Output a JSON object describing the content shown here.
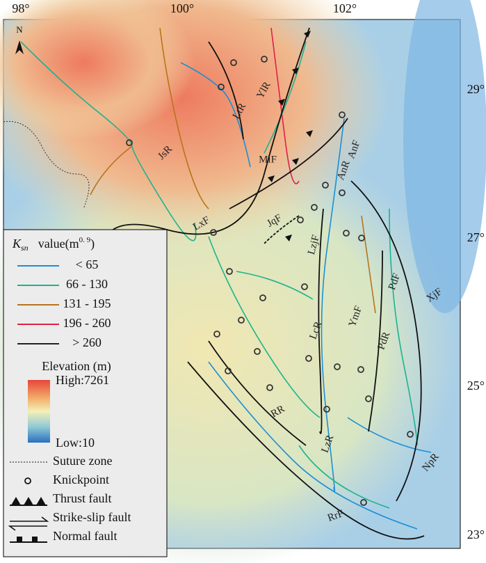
{
  "axes": {
    "top": [
      "98°",
      "100°",
      "102°"
    ],
    "right": [
      "29°",
      "27°",
      "25°",
      "23°"
    ]
  },
  "north": "N",
  "map_labels": [
    "YlR",
    "LtR",
    "JsR",
    "MlF",
    "AnF",
    "AnR",
    "LxF",
    "JqF",
    "LzjF",
    "XjF",
    "PdF",
    "YmF",
    "PdR",
    "LcR",
    "RR",
    "LzR",
    "NpR",
    "RrF"
  ],
  "legend": {
    "title_symbol": "K",
    "title_subscript": "sn",
    "title_text": "value(m",
    "title_superscript": "0. 9",
    "title_close": ")",
    "ksn_classes": [
      {
        "label": "< 65",
        "color": "#1b8fd6"
      },
      {
        "label": "66 - 130",
        "color": "#1bb38e"
      },
      {
        "label": "131 - 195",
        "color": "#b8741c"
      },
      {
        "label": "196 - 260",
        "color": "#e0204a"
      },
      {
        "label": "> 260",
        "color": "#222222"
      }
    ],
    "elevation": {
      "title": "Elevation (m)",
      "high": "High:7261",
      "low": "Low:10"
    },
    "symbols": [
      "Suture zone",
      "Knickpoint",
      "Thrust fault",
      "Strike-slip fault",
      "Normal fault"
    ]
  }
}
